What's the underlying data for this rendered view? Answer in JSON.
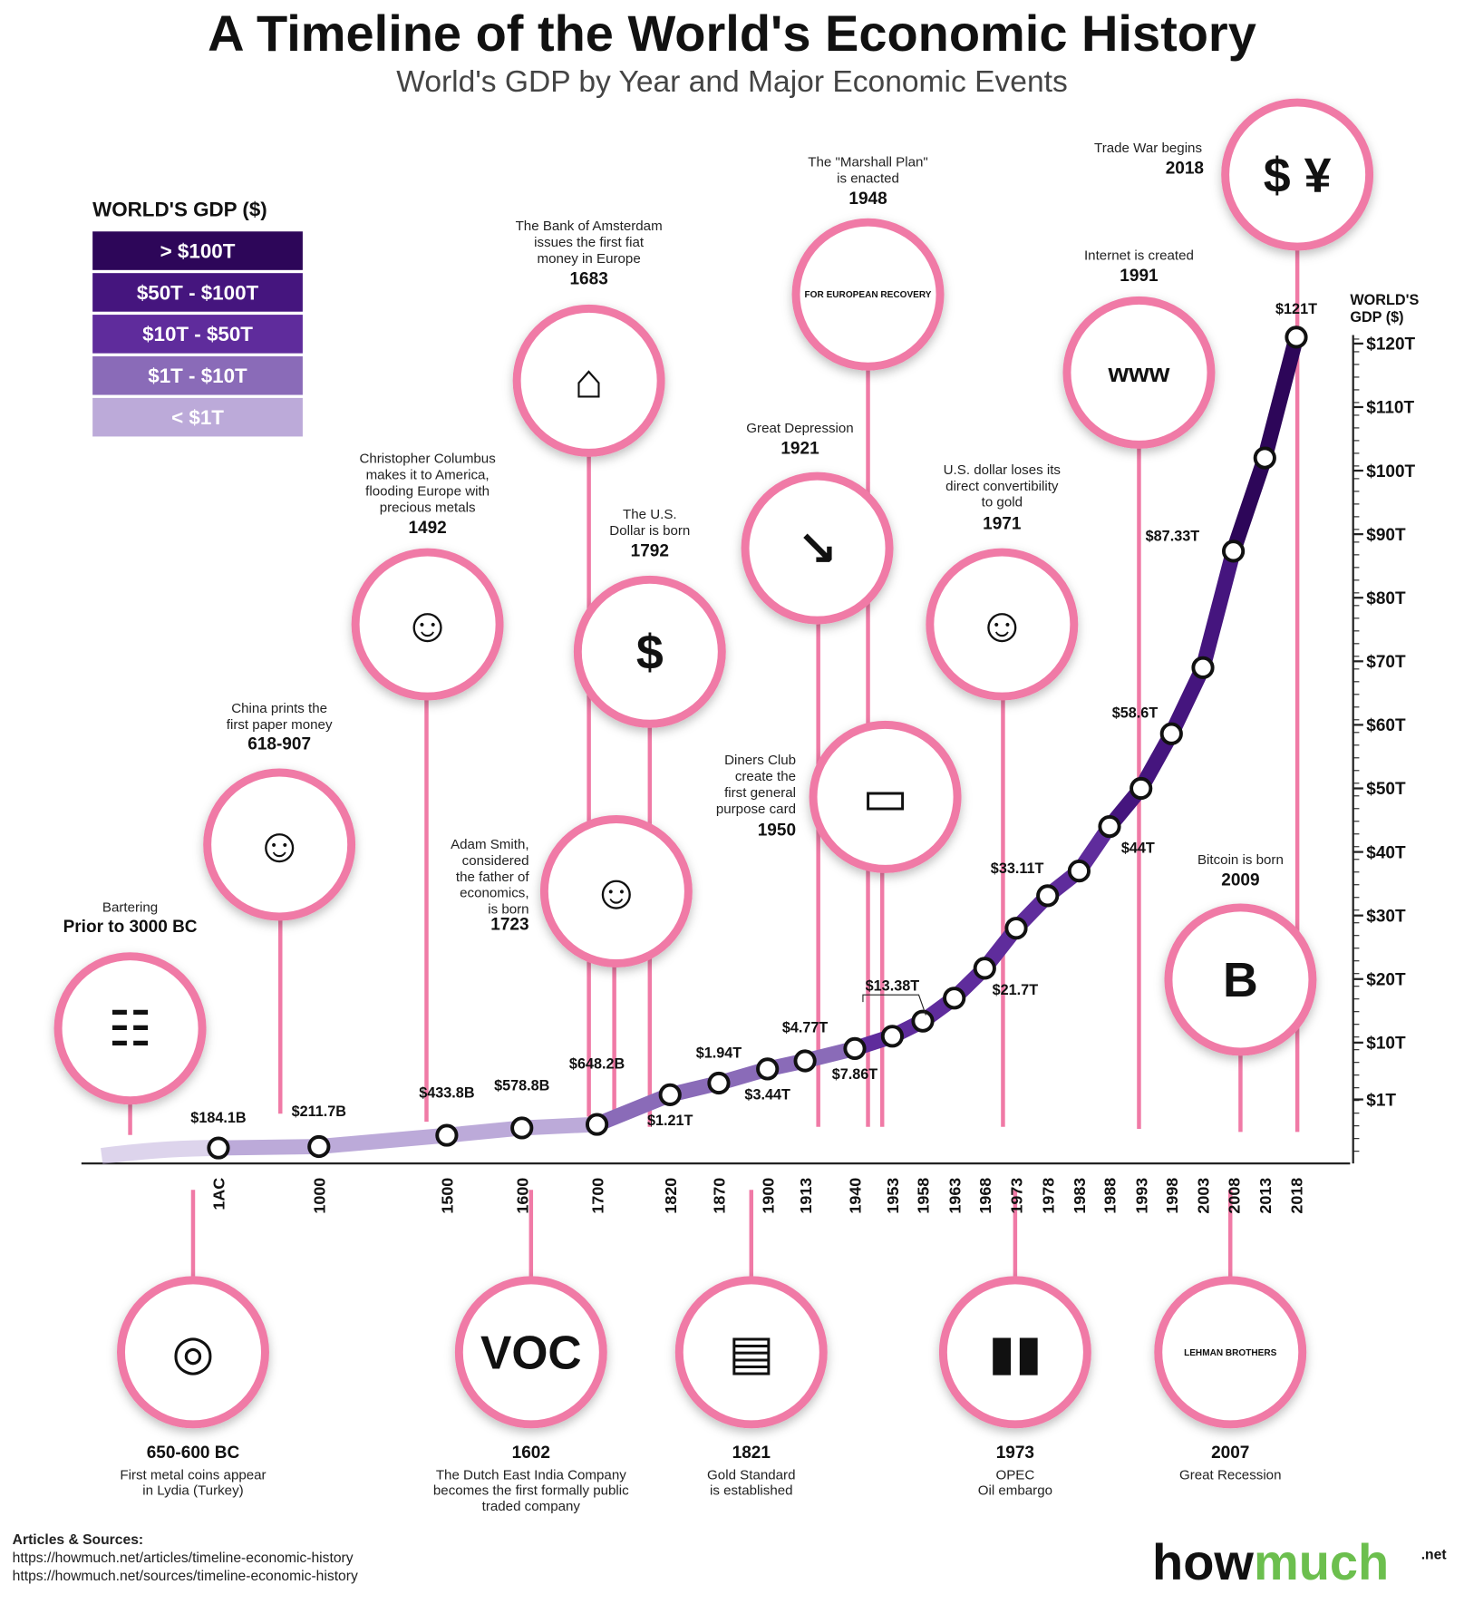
{
  "title": "A Timeline of the World's Economic History",
  "subtitle": "World's GDP by Year and Major Economic Events",
  "legend": {
    "title": "WORLD'S GDP ($)",
    "bands": [
      {
        "label": "> $100T",
        "color": "#2d0659"
      },
      {
        "label": "$50T - $100T",
        "color": "#45157e"
      },
      {
        "label": "$10T - $50T",
        "color": "#5f2c9c"
      },
      {
        "label": "$1T - $10T",
        "color": "#8a6bb8"
      },
      {
        "label": "< $1T",
        "color": "#bcaad9"
      }
    ]
  },
  "colors": {
    "accent_pink": "#f07aa6",
    "line_under_1T": "#bcaad9",
    "line_1_10T": "#8a6bb8",
    "line_10_50T": "#5f2c9c",
    "line_50_100T": "#45157e",
    "line_over_100T": "#2d0659",
    "logo_green": "#6cbf4e"
  },
  "chart_data": {
    "type": "line",
    "title": "World's GDP by Year",
    "ylabel": "WORLD'S GDP ($)",
    "x": [
      "1AC",
      "1000",
      "1500",
      "1600",
      "1700",
      "1820",
      "1870",
      "1900",
      "1913",
      "1940",
      "1953",
      "1958",
      "1963",
      "1968",
      "1973",
      "1978",
      "1983",
      "1988",
      "1993",
      "1998",
      "2003",
      "2008",
      "2013",
      "2018"
    ],
    "values_trillion": [
      0.1841,
      0.2117,
      0.4338,
      0.5788,
      0.6482,
      1.21,
      1.94,
      3.44,
      4.77,
      7.86,
      11,
      13.38,
      17,
      21.7,
      28,
      33.11,
      37,
      44,
      50,
      58.6,
      69,
      87.33,
      102,
      121
    ],
    "value_labels": [
      "$184.1B",
      "$211.7B",
      "$433.8B",
      "$578.8B",
      "$648.2B",
      "$1.21T",
      "$1.94T",
      "$3.44T",
      "$4.77T",
      "$7.86T",
      "",
      "$13.38T",
      "",
      "$21.7T",
      "",
      "$33.11T",
      "",
      "$44T",
      "",
      "$58.6T",
      "",
      "$87.33T",
      "",
      "$121T"
    ],
    "yticks": [
      "$120T",
      "$110T",
      "$100T",
      "$90T",
      "$80T",
      "$70T",
      "$60T",
      "$50T",
      "$40T",
      "$30T",
      "$20T",
      "$10T",
      "$1T"
    ],
    "ytick_values": [
      120,
      110,
      100,
      90,
      80,
      70,
      60,
      50,
      40,
      30,
      20,
      10,
      1
    ],
    "axis_title_lines": [
      "WORLD'S",
      "GDP ($)"
    ],
    "grid": false
  },
  "events_top": [
    {
      "id": "bartering",
      "lines": [
        "Bartering"
      ],
      "year": "Prior to 3000 BC",
      "icon": "handshake-icon"
    },
    {
      "id": "paper-money",
      "lines": [
        "China prints the",
        "first paper money"
      ],
      "year": "618-907",
      "icon": "chinese-official-icon"
    },
    {
      "id": "columbus",
      "lines": [
        "Christopher Columbus",
        "makes it to America,",
        "flooding Europe with",
        "precious metals"
      ],
      "year": "1492",
      "icon": "columbus-portrait-icon"
    },
    {
      "id": "amsterdam",
      "lines": [
        "The Bank of Amsterdam",
        "issues the first fiat",
        "money in Europe"
      ],
      "year": "1683",
      "icon": "building-icon"
    },
    {
      "id": "us-dollar",
      "lines": [
        "The U.S.",
        "Dollar is born"
      ],
      "year": "1792",
      "icon": "dollar-bill-icon"
    },
    {
      "id": "adam-smith",
      "lines": [
        "Adam Smith,",
        "considered",
        "the father of",
        "economics,",
        "is born"
      ],
      "year": "1723",
      "icon": "adam-smith-portrait-icon"
    },
    {
      "id": "depression",
      "lines": [
        "Great Depression"
      ],
      "year": "1921",
      "icon": "bank-crash-icon"
    },
    {
      "id": "marshall",
      "lines": [
        "The \"Marshall Plan\"",
        "is enacted"
      ],
      "year": "1948",
      "icon": "marshall-shield-icon",
      "logo_text": "FOR EUROPEAN RECOVERY"
    },
    {
      "id": "diners",
      "lines": [
        "Diners Club",
        "create the",
        "first general",
        "purpose card"
      ],
      "year": "1950",
      "icon": "credit-card-icon"
    },
    {
      "id": "gold-convert",
      "lines": [
        "U.S. dollar loses its",
        "direct convertibility",
        "to gold"
      ],
      "year": "1971",
      "icon": "nixon-portrait-icon"
    },
    {
      "id": "internet",
      "lines": [
        "Internet is created"
      ],
      "year": "1991",
      "icon": "computer-icon",
      "logo_text": "www"
    },
    {
      "id": "bitcoin",
      "lines": [
        "Bitcoin is born"
      ],
      "year": "2009",
      "icon": "bitcoin-globe-icon"
    },
    {
      "id": "trade-war",
      "lines": [
        "Trade War begins"
      ],
      "year": "2018",
      "icon": "dollar-yuan-icon"
    }
  ],
  "events_bottom": [
    {
      "id": "coins",
      "year": "650-600 BC",
      "lines": [
        "First metal coins appear",
        "in Lydia (Turkey)"
      ],
      "icon": "coins-icon"
    },
    {
      "id": "voc",
      "year": "1602",
      "lines": [
        "The Dutch East India Company",
        "becomes the first formally public",
        "traded company"
      ],
      "icon": "voc-logo-icon",
      "logo_text": "VOC"
    },
    {
      "id": "gold-standard",
      "year": "1821",
      "lines": [
        "Gold Standard",
        "is established"
      ],
      "icon": "gold-bars-icon"
    },
    {
      "id": "opec",
      "year": "1973",
      "lines": [
        "OPEC",
        "Oil embargo"
      ],
      "icon": "oil-barrels-icon"
    },
    {
      "id": "recession",
      "year": "2007",
      "lines": [
        "Great Recession"
      ],
      "icon": "lehman-building-icon",
      "logo_text": "LEHMAN BROTHERS"
    }
  ],
  "sources": {
    "heading": "Articles & Sources:",
    "links": [
      "https://howmuch.net/articles/timeline-economic-history",
      "https://howmuch.net/sources/timeline-economic-history"
    ]
  },
  "logo": {
    "part1": "how",
    "part2": "much",
    "suffix": ".net"
  }
}
